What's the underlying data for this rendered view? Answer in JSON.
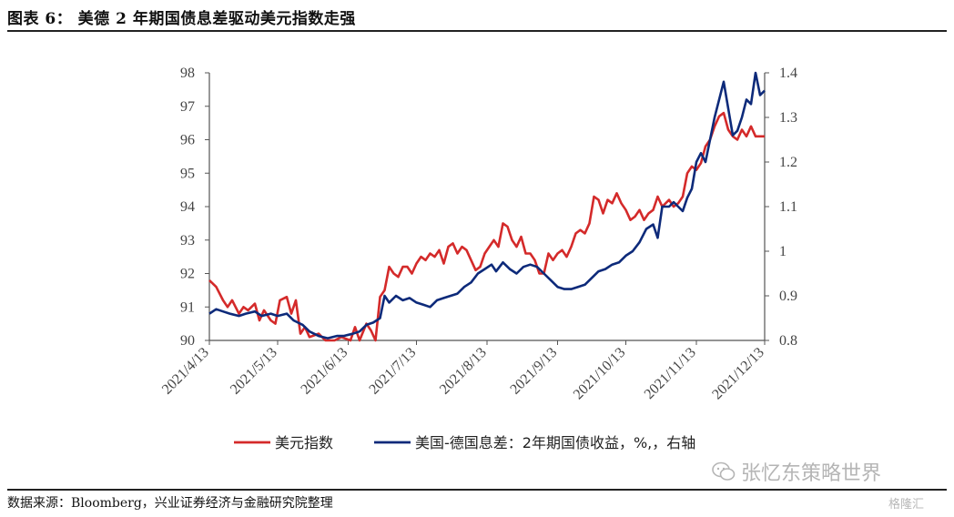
{
  "figure_title": "图表 6：   美德 2 年期国债息差驱动美元指数走强",
  "source_text": "数据来源：Bloomberg，兴业证券经济与金融研究院整理",
  "watermark_text": "张忆东策略世界",
  "corner_watermark": "格隆汇",
  "colors": {
    "usd": "#d42a2a",
    "spread": "#0d2a7a",
    "axis": "#555555",
    "text": "#333333"
  },
  "chart_data": {
    "type": "line",
    "x_ticks": [
      "2021/4/13",
      "2021/5/13",
      "2021/6/13",
      "2021/7/13",
      "2021/8/13",
      "2021/9/13",
      "2021/10/13",
      "2021/11/13",
      "2021/12/13"
    ],
    "x_range": [
      "2021-04-13",
      "2021-12-13"
    ],
    "y_left": {
      "range": [
        90,
        98
      ],
      "ticks": [
        "90",
        "91",
        "92",
        "93",
        "94",
        "95",
        "96",
        "97",
        "98"
      ]
    },
    "y_right": {
      "range": [
        0.8,
        1.4
      ],
      "ticks": [
        "0.8",
        "0.9",
        "1",
        "1.1",
        "1.2",
        "1.3",
        "1.4"
      ]
    },
    "legend_position": "bottom",
    "series": [
      {
        "name": "美元指数",
        "axis": "left",
        "color": "#d42a2a",
        "points": [
          [
            "2021-04-13",
            91.8
          ],
          [
            "2021-04-16",
            91.6
          ],
          [
            "2021-04-19",
            91.2
          ],
          [
            "2021-04-21",
            91.0
          ],
          [
            "2021-04-23",
            91.2
          ],
          [
            "2021-04-26",
            90.8
          ],
          [
            "2021-04-28",
            91.0
          ],
          [
            "2021-04-30",
            90.9
          ],
          [
            "2021-05-03",
            91.1
          ],
          [
            "2021-05-05",
            90.6
          ],
          [
            "2021-05-07",
            90.9
          ],
          [
            "2021-05-10",
            90.6
          ],
          [
            "2021-05-12",
            90.5
          ],
          [
            "2021-05-14",
            91.2
          ],
          [
            "2021-05-17",
            91.3
          ],
          [
            "2021-05-19",
            90.8
          ],
          [
            "2021-05-21",
            91.2
          ],
          [
            "2021-05-23",
            90.2
          ],
          [
            "2021-05-25",
            90.4
          ],
          [
            "2021-05-27",
            90.1
          ],
          [
            "2021-05-31",
            90.2
          ],
          [
            "2021-06-03",
            90.0
          ],
          [
            "2021-06-07",
            90.0
          ],
          [
            "2021-06-10",
            90.1
          ],
          [
            "2021-06-14",
            90.0
          ],
          [
            "2021-06-16",
            90.4
          ],
          [
            "2021-06-18",
            90.0
          ],
          [
            "2021-06-21",
            90.5
          ],
          [
            "2021-06-23",
            90.3
          ],
          [
            "2021-06-25",
            90.0
          ],
          [
            "2021-06-27",
            91.3
          ],
          [
            "2021-06-29",
            91.5
          ],
          [
            "2021-07-01",
            92.2
          ],
          [
            "2021-07-03",
            92.0
          ],
          [
            "2021-07-05",
            91.9
          ],
          [
            "2021-07-07",
            92.2
          ],
          [
            "2021-07-09",
            92.2
          ],
          [
            "2021-07-11",
            92.0
          ],
          [
            "2021-07-13",
            92.3
          ],
          [
            "2021-07-15",
            92.5
          ],
          [
            "2021-07-17",
            92.4
          ],
          [
            "2021-07-19",
            92.6
          ],
          [
            "2021-07-21",
            92.5
          ],
          [
            "2021-07-23",
            92.7
          ],
          [
            "2021-07-25",
            92.3
          ],
          [
            "2021-07-27",
            92.8
          ],
          [
            "2021-07-29",
            92.9
          ],
          [
            "2021-07-31",
            92.6
          ],
          [
            "2021-08-02",
            92.8
          ],
          [
            "2021-08-04",
            92.7
          ],
          [
            "2021-08-06",
            92.4
          ],
          [
            "2021-08-08",
            92.1
          ],
          [
            "2021-08-10",
            92.2
          ],
          [
            "2021-08-12",
            92.6
          ],
          [
            "2021-08-14",
            92.8
          ],
          [
            "2021-08-16",
            93.0
          ],
          [
            "2021-08-18",
            92.8
          ],
          [
            "2021-08-20",
            93.5
          ],
          [
            "2021-08-22",
            93.4
          ],
          [
            "2021-08-24",
            93.0
          ],
          [
            "2021-08-26",
            92.8
          ],
          [
            "2021-08-28",
            93.1
          ],
          [
            "2021-08-30",
            92.6
          ],
          [
            "2021-09-01",
            92.6
          ],
          [
            "2021-09-03",
            92.4
          ],
          [
            "2021-09-05",
            92.0
          ],
          [
            "2021-09-07",
            92.0
          ],
          [
            "2021-09-09",
            92.6
          ],
          [
            "2021-09-11",
            92.4
          ],
          [
            "2021-09-13",
            92.6
          ],
          [
            "2021-09-15",
            92.7
          ],
          [
            "2021-09-17",
            92.5
          ],
          [
            "2021-09-19",
            92.8
          ],
          [
            "2021-09-21",
            93.2
          ],
          [
            "2021-09-23",
            93.3
          ],
          [
            "2021-09-25",
            93.2
          ],
          [
            "2021-09-27",
            93.5
          ],
          [
            "2021-09-29",
            94.3
          ],
          [
            "2021-10-01",
            94.2
          ],
          [
            "2021-10-03",
            93.8
          ],
          [
            "2021-10-05",
            94.2
          ],
          [
            "2021-10-07",
            94.1
          ],
          [
            "2021-10-09",
            94.4
          ],
          [
            "2021-10-11",
            94.1
          ],
          [
            "2021-10-13",
            93.9
          ],
          [
            "2021-10-15",
            93.6
          ],
          [
            "2021-10-17",
            93.7
          ],
          [
            "2021-10-19",
            93.9
          ],
          [
            "2021-10-21",
            93.6
          ],
          [
            "2021-10-23",
            93.8
          ],
          [
            "2021-10-25",
            93.9
          ],
          [
            "2021-10-27",
            94.3
          ],
          [
            "2021-10-29",
            94.0
          ],
          [
            "2021-11-01",
            94.2
          ],
          [
            "2021-11-03",
            94.0
          ],
          [
            "2021-11-05",
            94.1
          ],
          [
            "2021-11-07",
            94.3
          ],
          [
            "2021-11-09",
            95.0
          ],
          [
            "2021-11-11",
            95.2
          ],
          [
            "2021-11-13",
            95.1
          ],
          [
            "2021-11-15",
            95.3
          ],
          [
            "2021-11-17",
            95.8
          ],
          [
            "2021-11-19",
            96.0
          ],
          [
            "2021-11-21",
            96.4
          ],
          [
            "2021-11-23",
            96.7
          ],
          [
            "2021-11-25",
            96.8
          ],
          [
            "2021-11-27",
            96.3
          ],
          [
            "2021-11-29",
            96.1
          ],
          [
            "2021-12-01",
            96.0
          ],
          [
            "2021-12-03",
            96.3
          ],
          [
            "2021-12-05",
            96.1
          ],
          [
            "2021-12-07",
            96.4
          ],
          [
            "2021-12-09",
            96.1
          ],
          [
            "2021-12-11",
            96.1
          ],
          [
            "2021-12-13",
            96.1
          ]
        ]
      },
      {
        "name": "美国-德国息差：2年期国债收益，%,，右轴",
        "axis": "right",
        "color": "#0d2a7a",
        "points": [
          [
            "2021-04-13",
            0.86
          ],
          [
            "2021-04-16",
            0.87
          ],
          [
            "2021-04-19",
            0.865
          ],
          [
            "2021-04-22",
            0.86
          ],
          [
            "2021-04-26",
            0.855
          ],
          [
            "2021-04-29",
            0.86
          ],
          [
            "2021-05-03",
            0.865
          ],
          [
            "2021-05-06",
            0.855
          ],
          [
            "2021-05-10",
            0.86
          ],
          [
            "2021-05-13",
            0.855
          ],
          [
            "2021-05-17",
            0.86
          ],
          [
            "2021-05-20",
            0.845
          ],
          [
            "2021-05-24",
            0.835
          ],
          [
            "2021-05-27",
            0.82
          ],
          [
            "2021-05-31",
            0.81
          ],
          [
            "2021-06-04",
            0.805
          ],
          [
            "2021-06-08",
            0.81
          ],
          [
            "2021-06-11",
            0.81
          ],
          [
            "2021-06-15",
            0.815
          ],
          [
            "2021-06-18",
            0.82
          ],
          [
            "2021-06-21",
            0.835
          ],
          [
            "2021-06-24",
            0.84
          ],
          [
            "2021-06-27",
            0.85
          ],
          [
            "2021-06-29",
            0.9
          ],
          [
            "2021-07-01",
            0.885
          ],
          [
            "2021-07-04",
            0.9
          ],
          [
            "2021-07-07",
            0.89
          ],
          [
            "2021-07-10",
            0.895
          ],
          [
            "2021-07-13",
            0.885
          ],
          [
            "2021-07-16",
            0.88
          ],
          [
            "2021-07-19",
            0.875
          ],
          [
            "2021-07-22",
            0.89
          ],
          [
            "2021-07-25",
            0.895
          ],
          [
            "2021-07-28",
            0.9
          ],
          [
            "2021-07-31",
            0.905
          ],
          [
            "2021-08-03",
            0.92
          ],
          [
            "2021-08-06",
            0.93
          ],
          [
            "2021-08-09",
            0.95
          ],
          [
            "2021-08-12",
            0.96
          ],
          [
            "2021-08-15",
            0.97
          ],
          [
            "2021-08-17",
            0.955
          ],
          [
            "2021-08-20",
            0.975
          ],
          [
            "2021-08-23",
            0.96
          ],
          [
            "2021-08-26",
            0.95
          ],
          [
            "2021-08-29",
            0.965
          ],
          [
            "2021-09-01",
            0.97
          ],
          [
            "2021-09-04",
            0.965
          ],
          [
            "2021-09-07",
            0.95
          ],
          [
            "2021-09-10",
            0.935
          ],
          [
            "2021-09-13",
            0.92
          ],
          [
            "2021-09-16",
            0.915
          ],
          [
            "2021-09-19",
            0.915
          ],
          [
            "2021-09-22",
            0.92
          ],
          [
            "2021-09-25",
            0.925
          ],
          [
            "2021-09-28",
            0.94
          ],
          [
            "2021-10-01",
            0.955
          ],
          [
            "2021-10-04",
            0.96
          ],
          [
            "2021-10-07",
            0.97
          ],
          [
            "2021-10-10",
            0.975
          ],
          [
            "2021-10-13",
            0.99
          ],
          [
            "2021-10-16",
            1.0
          ],
          [
            "2021-10-19",
            1.02
          ],
          [
            "2021-10-22",
            1.05
          ],
          [
            "2021-10-25",
            1.06
          ],
          [
            "2021-10-27",
            1.03
          ],
          [
            "2021-10-29",
            1.1
          ],
          [
            "2021-11-01",
            1.1
          ],
          [
            "2021-11-03",
            1.11
          ],
          [
            "2021-11-05",
            1.1
          ],
          [
            "2021-11-07",
            1.09
          ],
          [
            "2021-11-09",
            1.12
          ],
          [
            "2021-11-11",
            1.14
          ],
          [
            "2021-11-13",
            1.2
          ],
          [
            "2021-11-15",
            1.22
          ],
          [
            "2021-11-17",
            1.2
          ],
          [
            "2021-11-19",
            1.25
          ],
          [
            "2021-11-21",
            1.3
          ],
          [
            "2021-11-23",
            1.34
          ],
          [
            "2021-11-25",
            1.38
          ],
          [
            "2021-11-27",
            1.32
          ],
          [
            "2021-11-29",
            1.26
          ],
          [
            "2021-12-01",
            1.27
          ],
          [
            "2021-12-03",
            1.3
          ],
          [
            "2021-12-05",
            1.34
          ],
          [
            "2021-12-07",
            1.33
          ],
          [
            "2021-12-09",
            1.4
          ],
          [
            "2021-12-11",
            1.35
          ],
          [
            "2021-12-13",
            1.36
          ]
        ]
      }
    ]
  }
}
